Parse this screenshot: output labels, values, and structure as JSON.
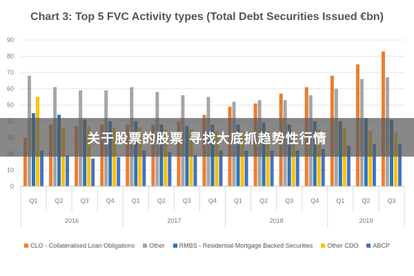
{
  "chart_data": {
    "type": "bar",
    "title": "Chart 3: Top 5 FVC Activity types (Total Debt Securities Issued €bn)",
    "xlabel": "",
    "ylabel": "",
    "ylim": [
      0,
      90
    ],
    "yticks": [
      0,
      10,
      20,
      30,
      40,
      50,
      60,
      70,
      80,
      90
    ],
    "grid": true,
    "legend_position": "bottom",
    "groups": [
      {
        "label": "2016",
        "quarters": [
          "Q1",
          "Q2",
          "Q3",
          "Q4"
        ]
      },
      {
        "label": "2017",
        "quarters": [
          "Q1",
          "Q2",
          "Q3",
          "Q4"
        ]
      },
      {
        "label": "2018",
        "quarters": [
          "Q1",
          "Q2",
          "Q3",
          "Q4"
        ]
      },
      {
        "label": "2019",
        "quarters": [
          "Q1",
          "Q2",
          "Q3"
        ]
      }
    ],
    "series": [
      {
        "name": "CLO - Collateralised Loan Obligations",
        "color": "#ED7D31",
        "values": [
          30,
          38,
          37,
          38,
          38,
          38,
          40,
          44,
          49,
          51,
          57,
          61,
          68,
          75,
          83
        ]
      },
      {
        "name": "Other",
        "color": "#A5A5A5",
        "values": [
          68,
          61,
          59,
          59,
          61,
          58,
          56,
          55,
          52,
          53,
          53,
          56,
          60,
          66,
          67
        ]
      },
      {
        "name": "RMBS - Residential Mortgage Backed Securities",
        "color": "#2E75B6",
        "values": [
          45,
          44,
          41,
          40,
          40,
          38,
          37,
          38,
          38,
          39,
          38,
          40,
          40,
          42,
          41
        ]
      },
      {
        "name": "Other CDO",
        "color": "#FFC000",
        "values": [
          55,
          36,
          37,
          36,
          36,
          35,
          35,
          34,
          34,
          34,
          34,
          35,
          36,
          34,
          33
        ]
      },
      {
        "name": "ABCP",
        "color": "#4472C4",
        "values": [
          22,
          19,
          17,
          18,
          22,
          21,
          19,
          22,
          22,
          22,
          22,
          23,
          25,
          26,
          26
        ]
      }
    ]
  },
  "overlay": {
    "text": "关于股票的股票 寻找大底抓趋势性行情"
  }
}
